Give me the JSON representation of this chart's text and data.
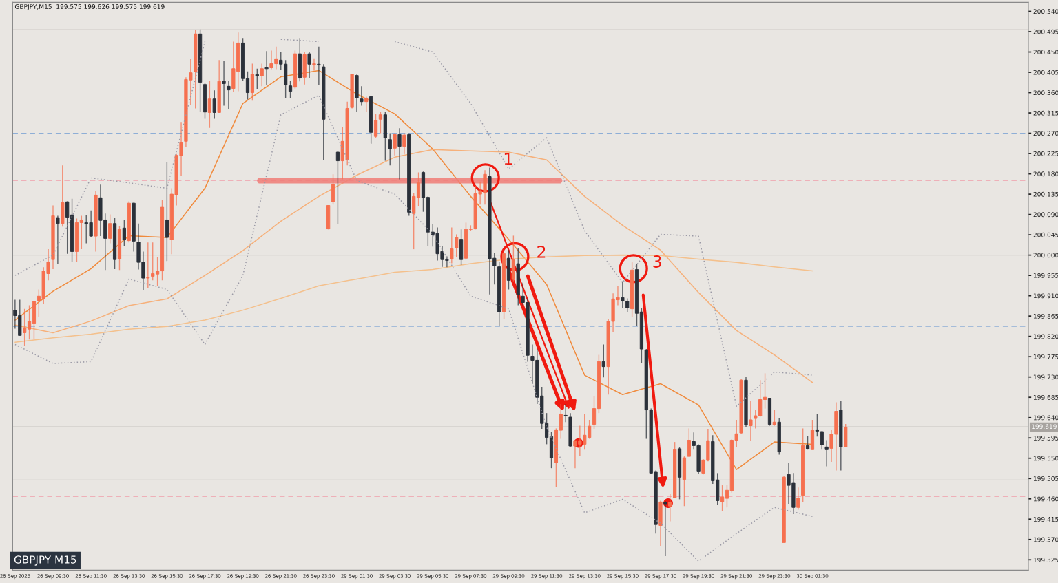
{
  "chart_data": {
    "type": "candlestick",
    "title": "GBPJPY,M15  199.575 199.626 199.575 199.619",
    "annotations": [
      "GBPJPY M15",
      "1",
      "2",
      "3"
    ],
    "categories": [
      "26 Sep 2025",
      null,
      null,
      null,
      null,
      null,
      null,
      null,
      "26 Sep 09:30",
      null,
      null,
      null,
      null,
      null,
      null,
      null,
      "26 Sep 11:30",
      null,
      null,
      null,
      null,
      null,
      null,
      null,
      "26 Sep 13:30",
      null,
      null,
      null,
      null,
      null,
      null,
      null,
      "26 Sep 15:30",
      null,
      null,
      null,
      null,
      null,
      null,
      null,
      "26 Sep 17:30",
      null,
      null,
      null,
      null,
      null,
      null,
      null,
      "26 Sep 19:30",
      null,
      null,
      null,
      null,
      null,
      null,
      null,
      "26 Sep 21:30",
      null,
      null,
      null,
      null,
      null,
      null,
      null,
      "26 Sep 23:30",
      null,
      null,
      null,
      null,
      null,
      null,
      null,
      "29 Sep 01:30",
      null,
      null,
      null,
      null,
      null,
      null,
      null,
      "29 Sep 03:30",
      null,
      null,
      null,
      null,
      null,
      null,
      null,
      "29 Sep 05:30",
      null,
      null,
      null,
      null,
      null,
      null,
      null,
      "29 Sep 07:30",
      null,
      null,
      null,
      null,
      null,
      null,
      null,
      "29 Sep 09:30",
      null,
      null,
      null,
      null,
      null,
      null,
      null,
      "29 Sep 11:30",
      null,
      null,
      null,
      null,
      null,
      null,
      null,
      "29 Sep 13:30",
      null,
      null,
      null,
      null,
      null,
      null,
      null,
      "29 Sep 15:30",
      null,
      null,
      null,
      null,
      null,
      null,
      null,
      "29 Sep 17:30",
      null,
      null,
      null,
      null,
      null,
      null,
      null,
      "29 Sep 19:30",
      null,
      null,
      null,
      null,
      null,
      null,
      null,
      "29 Sep 21:30",
      null,
      null,
      null,
      null,
      null,
      null,
      null,
      "29 Sep 23:30",
      null,
      null,
      null,
      null,
      null,
      null,
      null,
      "30 Sep 01:30",
      null,
      null,
      null,
      null,
      null,
      null,
      null,
      null,
      null,
      null,
      null,
      null,
      null,
      null,
      null,
      null,
      null,
      null,
      null,
      null,
      null,
      null,
      null,
      null,
      null,
      null,
      null,
      null,
      null,
      null,
      null,
      null,
      null,
      null,
      null,
      null,
      null,
      null,
      null,
      null,
      null,
      null,
      null,
      null,
      null
    ],
    "ohlc": [
      [
        199.878,
        199.901,
        199.837,
        199.866
      ],
      [
        199.866,
        199.901,
        199.822,
        199.822
      ],
      [
        199.828,
        199.881,
        199.798,
        199.839
      ],
      [
        199.836,
        199.889,
        199.813,
        199.853
      ],
      [
        199.849,
        199.898,
        199.813,
        199.898
      ],
      [
        199.898,
        199.924,
        199.863,
        199.909
      ],
      [
        199.904,
        199.973,
        199.891,
        199.965
      ],
      [
        199.959,
        200.013,
        199.944,
        199.985
      ],
      [
        199.99,
        200.11,
        199.969,
        200.087
      ],
      [
        200.083,
        200.087,
        199.981,
        200.07
      ],
      [
        200.07,
        200.199,
        200.063,
        200.116
      ],
      [
        200.118,
        200.119,
        200.003,
        200.084
      ],
      [
        200.089,
        200.125,
        199.985,
        200.008
      ],
      [
        200.008,
        200.081,
        199.985,
        200.072
      ],
      [
        200.072,
        200.087,
        200.013,
        200.078
      ],
      [
        200.072,
        200.089,
        200.026,
        200.069
      ],
      [
        200.072,
        200.099,
        200.039,
        200.042
      ],
      [
        200.042,
        200.142,
        200.008,
        200.133
      ],
      [
        200.127,
        200.156,
        200.042,
        200.077
      ],
      [
        200.078,
        200.092,
        199.967,
        200.037
      ],
      [
        200.037,
        200.09,
        200.026,
        200.07
      ],
      [
        200.07,
        200.083,
        199.969,
        199.99
      ],
      [
        199.991,
        200.064,
        199.967,
        200.057
      ],
      [
        200.06,
        200.078,
        200.02,
        200.034
      ],
      [
        200.032,
        200.119,
        200.028,
        200.115
      ],
      [
        200.115,
        200.116,
        200.008,
        200.031
      ],
      [
        200.029,
        200.07,
        199.968,
        199.984
      ],
      [
        199.984,
        200.008,
        199.923,
        199.949
      ],
      [
        199.949,
        200.028,
        199.927,
        199.95
      ],
      [
        199.953,
        200.028,
        199.944,
        199.959
      ],
      [
        199.958,
        199.996,
        199.932,
        199.965
      ],
      [
        199.965,
        200.122,
        199.944,
        200.106
      ],
      [
        200.078,
        200.206,
        199.987,
        200.039
      ],
      [
        200.034,
        200.148,
        200.002,
        200.135
      ],
      [
        200.133,
        200.224,
        200.11,
        200.221
      ],
      [
        200.22,
        200.295,
        200.176,
        200.249
      ],
      [
        200.252,
        200.394,
        200.24,
        200.389
      ],
      [
        200.388,
        200.435,
        200.333,
        200.404
      ],
      [
        200.406,
        200.499,
        200.325,
        200.49
      ],
      [
        200.49,
        200.5,
        200.317,
        200.383
      ],
      [
        200.378,
        200.381,
        200.302,
        200.317
      ],
      [
        200.316,
        200.386,
        200.282,
        200.346
      ],
      [
        200.346,
        200.365,
        200.302,
        200.316
      ],
      [
        200.316,
        200.432,
        200.316,
        200.385
      ],
      [
        200.386,
        200.43,
        200.331,
        200.38
      ],
      [
        200.374,
        200.386,
        200.324,
        200.366
      ],
      [
        200.369,
        200.473,
        200.362,
        200.413
      ],
      [
        200.407,
        200.493,
        200.363,
        200.47
      ],
      [
        200.47,
        200.481,
        200.386,
        200.391
      ],
      [
        200.391,
        200.407,
        200.345,
        200.36
      ],
      [
        200.36,
        200.424,
        200.342,
        200.401
      ],
      [
        200.4,
        200.413,
        200.368,
        200.397
      ],
      [
        200.397,
        200.424,
        200.374,
        200.413
      ],
      [
        200.415,
        200.452,
        200.377,
        200.413
      ],
      [
        200.415,
        200.453,
        200.412,
        200.424
      ],
      [
        200.424,
        200.462,
        200.412,
        200.435
      ],
      [
        200.432,
        200.45,
        200.41,
        200.423
      ],
      [
        200.423,
        200.432,
        200.348,
        200.377
      ],
      [
        200.375,
        200.386,
        200.348,
        200.363
      ],
      [
        200.372,
        200.453,
        200.369,
        200.446
      ],
      [
        200.446,
        200.481,
        200.385,
        200.392
      ],
      [
        200.394,
        200.45,
        200.378,
        200.444
      ],
      [
        200.446,
        200.45,
        200.392,
        200.423
      ],
      [
        200.421,
        200.436,
        200.409,
        200.424
      ],
      [
        200.423,
        200.462,
        200.377,
        200.421
      ],
      [
        200.417,
        200.423,
        200.211,
        200.301
      ],
      [
        200.058,
        200.11,
        200.057,
        200.11
      ],
      [
        200.118,
        200.179,
        200.112,
        200.157
      ],
      [
        200.228,
        200.231,
        200.069,
        200.209
      ],
      [
        200.209,
        200.284,
        200.168,
        200.252
      ],
      [
        200.211,
        200.34,
        200.199,
        200.325
      ],
      [
        200.327,
        200.401,
        200.325,
        200.401
      ],
      [
        200.398,
        200.4,
        200.317,
        200.348
      ],
      [
        200.346,
        200.374,
        200.331,
        200.34
      ],
      [
        200.34,
        200.351,
        200.317,
        200.348
      ],
      [
        200.351,
        200.353,
        200.247,
        200.272
      ],
      [
        200.263,
        200.313,
        200.26,
        200.299
      ],
      [
        200.301,
        200.317,
        200.27,
        200.311
      ],
      [
        200.311,
        200.317,
        200.209,
        200.26
      ],
      [
        200.256,
        200.27,
        200.199,
        200.235
      ],
      [
        200.237,
        200.27,
        200.221,
        200.267
      ],
      [
        200.267,
        200.281,
        200.168,
        200.241
      ],
      [
        200.241,
        200.27,
        200.224,
        200.266
      ],
      [
        200.267,
        200.27,
        200.087,
        200.095
      ],
      [
        200.092,
        200.138,
        200.013,
        200.13
      ],
      [
        200.127,
        200.183,
        200.109,
        200.16
      ],
      [
        200.183,
        200.185,
        200.096,
        200.127
      ],
      [
        200.128,
        200.13,
        200.02,
        200.051
      ],
      [
        200.051,
        200.069,
        200.019,
        200.046
      ],
      [
        200.048,
        200.061,
        199.988,
        200.003
      ],
      [
        200.008,
        200.02,
        199.974,
        199.99
      ],
      [
        199.99,
        199.997,
        199.973,
        199.988
      ],
      [
        199.991,
        200.061,
        199.982,
        200.014
      ],
      [
        200.016,
        200.046,
        199.996,
        200.039
      ],
      [
        200.035,
        200.057,
        199.978,
        199.99
      ],
      [
        199.993,
        200.072,
        199.99,
        200.057
      ],
      [
        200.057,
        200.066,
        200.054,
        200.058
      ],
      [
        200.058,
        200.153,
        200.057,
        200.136
      ],
      [
        200.135,
        200.163,
        200.112,
        200.142
      ],
      [
        200.138,
        200.188,
        200.112,
        200.179
      ],
      [
        200.174,
        200.194,
        199.913,
        199.991
      ],
      [
        199.993,
        200.005,
        199.935,
        199.976
      ],
      [
        199.974,
        199.985,
        199.843,
        199.874
      ],
      [
        199.874,
        200.005,
        199.859,
        200.003
      ],
      [
        199.993,
        200.011,
        199.924,
        199.944
      ],
      [
        199.946,
        200.043,
        199.942,
        199.99
      ],
      [
        199.981,
        200.016,
        199.889,
        199.912
      ],
      [
        199.909,
        199.939,
        199.889,
        199.895
      ],
      [
        199.895,
        199.904,
        199.764,
        199.778
      ],
      [
        199.776,
        199.802,
        199.715,
        199.767
      ],
      [
        199.767,
        199.792,
        199.67,
        199.685
      ],
      [
        199.688,
        199.708,
        199.615,
        199.627
      ],
      [
        199.627,
        199.65,
        199.581,
        199.596
      ],
      [
        199.598,
        199.609,
        199.528,
        199.551
      ],
      [
        199.54,
        199.616,
        199.487,
        199.613
      ],
      [
        199.612,
        199.67,
        199.593,
        199.648
      ],
      [
        199.645,
        199.67,
        199.63,
        199.644
      ],
      [
        199.641,
        199.65,
        199.575,
        199.577
      ],
      [
        199.577,
        199.589,
        199.528,
        199.589
      ],
      [
        199.581,
        199.622,
        199.555,
        199.589
      ],
      [
        199.581,
        199.647,
        199.569,
        199.601
      ],
      [
        199.596,
        199.635,
        199.593,
        199.621
      ],
      [
        199.625,
        199.688,
        199.615,
        199.66
      ],
      [
        199.66,
        199.779,
        199.65,
        199.764
      ],
      [
        199.764,
        199.802,
        199.729,
        199.753
      ],
      [
        199.753,
        199.859,
        199.691,
        199.853
      ],
      [
        199.853,
        199.915,
        199.83,
        199.903
      ],
      [
        199.901,
        199.932,
        199.889,
        199.906
      ],
      [
        199.906,
        199.942,
        199.883,
        199.898
      ],
      [
        199.898,
        199.904,
        199.874,
        199.883
      ],
      [
        199.881,
        199.984,
        199.863,
        199.967
      ],
      [
        199.968,
        199.981,
        199.843,
        199.871
      ],
      [
        199.874,
        199.883,
        199.761,
        199.792
      ],
      [
        199.79,
        199.792,
        199.593,
        199.657
      ],
      [
        199.657,
        199.66,
        199.517,
        199.517
      ],
      [
        199.519,
        199.523,
        199.383,
        199.403
      ],
      [
        199.401,
        199.456,
        199.356,
        199.453
      ],
      [
        199.452,
        199.455,
        199.333,
        199.449
      ],
      [
        199.444,
        199.471,
        199.41,
        199.452
      ],
      [
        199.462,
        199.586,
        199.462,
        199.569
      ],
      [
        199.571,
        199.574,
        199.459,
        199.508
      ],
      [
        199.503,
        199.554,
        199.444,
        199.551
      ],
      [
        199.554,
        199.616,
        199.554,
        199.59
      ],
      [
        199.587,
        199.607,
        199.569,
        199.578
      ],
      [
        199.578,
        199.581,
        199.516,
        199.52
      ],
      [
        199.517,
        199.548,
        199.514,
        199.546
      ],
      [
        199.545,
        199.615,
        199.543,
        199.589
      ],
      [
        199.587,
        199.601,
        199.493,
        199.5
      ],
      [
        199.502,
        199.517,
        199.447,
        199.456
      ],
      [
        199.453,
        199.49,
        199.433,
        199.464
      ],
      [
        199.461,
        199.49,
        199.441,
        199.479
      ],
      [
        199.478,
        199.592,
        199.474,
        199.59
      ],
      [
        199.59,
        199.635,
        199.574,
        199.604
      ],
      [
        199.606,
        199.726,
        199.604,
        199.723
      ],
      [
        199.723,
        199.731,
        199.619,
        199.624
      ],
      [
        199.622,
        199.677,
        199.589,
        199.635
      ],
      [
        199.638,
        199.657,
        199.616,
        199.644
      ],
      [
        199.644,
        199.723,
        199.642,
        199.68
      ],
      [
        199.68,
        199.738,
        199.66,
        199.685
      ],
      [
        199.683,
        199.683,
        199.622,
        199.625
      ],
      [
        199.624,
        199.657,
        199.622,
        199.63
      ],
      [
        199.63,
        199.638,
        199.558,
        199.564
      ],
      [
        199.363,
        199.51,
        199.363,
        199.508
      ],
      [
        199.514,
        199.54,
        199.449,
        199.49
      ],
      [
        199.496,
        199.517,
        199.426,
        199.441
      ],
      [
        199.441,
        199.485,
        199.436,
        199.462
      ],
      [
        199.468,
        199.616,
        199.453,
        199.578
      ],
      [
        199.578,
        199.599,
        199.569,
        199.571
      ],
      [
        199.569,
        199.635,
        199.569,
        199.612
      ],
      [
        199.613,
        199.648,
        199.598,
        199.61
      ],
      [
        199.609,
        199.61,
        199.569,
        199.58
      ],
      [
        199.575,
        199.59,
        199.532,
        199.569
      ],
      [
        199.572,
        199.613,
        199.542,
        199.603
      ],
      [
        199.603,
        199.674,
        199.523,
        199.654
      ],
      [
        199.657,
        199.676,
        199.523,
        199.575
      ],
      [
        199.575,
        199.626,
        199.575,
        199.619
      ],
      null,
      null,
      null,
      null,
      null,
      null,
      null,
      null,
      null,
      null,
      null,
      null,
      null,
      null,
      null,
      null,
      null,
      null,
      null,
      null,
      null,
      null,
      null,
      null,
      null,
      null,
      null,
      null,
      null,
      null,
      null,
      null,
      null,
      null,
      null,
      null,
      null,
      null
    ],
    "colors": [
      "#2b313a",
      "#2b313a",
      "#f6704f",
      "#f6704f",
      "#f6704f",
      "#f6704f",
      "#f6704f",
      "#f6704f",
      "#f6704f",
      "#2b313a",
      "#f6704f",
      "#2b313a",
      "#2b313a",
      "#f6704f",
      "#f6704f",
      "#2b313a",
      "#2b313a",
      "#f6704f",
      "#2b313a",
      "#2b313a",
      "#f6704f",
      "#2b313a",
      "#f6704f",
      "#2b313a",
      "#f6704f",
      "#2b313a",
      "#2b313a",
      "#2b313a",
      "#f6704f",
      "#f6704f",
      "#f6704f",
      "#f6704f",
      "#2b313a",
      "#f6704f",
      "#f6704f",
      "#f6704f",
      "#f6704f",
      "#f6704f",
      "#f6704f",
      "#2b313a",
      "#2b313a",
      "#f6704f",
      "#2b313a",
      "#f6704f",
      "#2b313a",
      "#2b313a",
      "#f6704f",
      "#f6704f",
      "#2b313a",
      "#2b313a",
      "#f6704f",
      "#2b313a",
      "#f6704f",
      "#2b313a",
      "#f6704f",
      "#f6704f",
      "#2b313a",
      "#2b313a",
      "#2b313a",
      "#f6704f",
      "#2b313a",
      "#f6704f",
      "#2b313a",
      "#f6704f",
      "#2b313a",
      "#2b313a",
      "#f6704f",
      "#f6704f",
      "#2b313a",
      "#f6704f",
      "#f6704f",
      "#f6704f",
      "#2b313a",
      "#2b313a",
      "#f6704f",
      "#2b313a",
      "#f6704f",
      "#f6704f",
      "#2b313a",
      "#2b313a",
      "#f6704f",
      "#2b313a",
      "#f6704f",
      "#2b313a",
      "#f6704f",
      "#f6704f",
      "#2b313a",
      "#2b313a",
      "#2b313a",
      "#2b313a",
      "#2b313a",
      "#2b313a",
      "#f6704f",
      "#f6704f",
      "#2b313a",
      "#f6704f",
      "#f6704f",
      "#f6704f",
      "#f6704f",
      "#f6704f",
      "#2b313a",
      "#2b313a",
      "#2b313a",
      "#f6704f",
      "#2b313a",
      "#f6704f",
      "#2b313a",
      "#2b313a",
      "#2b313a",
      "#2b313a",
      "#2b313a",
      "#2b313a",
      "#2b313a",
      "#2b313a",
      "#f6704f",
      "#f6704f",
      "#2b313a",
      "#2b313a",
      "#f6704f",
      "#f6704f",
      "#f6704f",
      "#f6704f",
      "#f6704f",
      "#f6704f",
      "#2b313a",
      "#f6704f",
      "#f6704f",
      "#f6704f",
      "#2b313a",
      "#2b313a",
      "#f6704f",
      "#2b313a",
      "#2b313a",
      "#2b313a",
      "#2b313a",
      "#2b313a",
      "#f6704f",
      "#2b313a",
      "#f6704f",
      "#f6704f",
      "#2b313a",
      "#f6704f",
      "#f6704f",
      "#2b313a",
      "#2b313a",
      "#f6704f",
      "#f6704f",
      "#2b313a",
      "#2b313a",
      "#f6704f",
      "#f6704f",
      "#f6704f",
      "#f6704f",
      "#f6704f",
      "#2b313a",
      "#f6704f",
      "#f6704f",
      "#f6704f",
      "#f6704f",
      "#2b313a",
      "#f6704f",
      "#2b313a",
      "#f6704f",
      "#2b313a",
      "#2b313a",
      "#f6704f",
      "#f6704f",
      "#2b313a",
      "#f6704f",
      "#2b313a",
      "#2b313a",
      "#2b313a",
      "#f6704f",
      "#f6704f",
      "#2b313a",
      "#f6704f",
      null,
      null,
      null,
      null,
      null,
      null,
      null,
      null,
      null,
      null,
      null,
      null,
      null,
      null,
      null,
      null,
      null,
      null,
      null,
      null,
      null,
      null,
      null,
      null,
      null,
      null,
      null,
      null,
      null,
      null,
      null,
      null,
      null,
      null,
      null,
      null,
      null,
      null
    ],
    "series": [
      {
        "type": "line",
        "color": "#f08a3c",
        "line_style": "solid",
        "x": [
          "26 Sep 2025",
          "26 Sep 09:30",
          "26 Sep 11:30",
          "26 Sep 13:30",
          "26 Sep 15:30",
          "26 Sep 17:30",
          "26 Sep 19:30",
          "26 Sep 21:30",
          "26 Sep 23:30",
          "29 Sep 01:30",
          "29 Sep 03:30",
          "29 Sep 05:30",
          "29 Sep 07:30",
          "29 Sep 09:30",
          "29 Sep 11:30",
          "29 Sep 13:30",
          "29 Sep 15:30",
          "29 Sep 17:30",
          "29 Sep 19:30",
          "29 Sep 21:30",
          "29 Sep 23:30",
          "30 Sep 01:30"
        ],
        "values": [
          199.856,
          199.92,
          199.97,
          200.043,
          200.039,
          200.148,
          200.336,
          200.395,
          200.409,
          200.357,
          200.313,
          200.235,
          200.13,
          200.035,
          199.935,
          199.734,
          199.691,
          199.715,
          199.668,
          199.525,
          199.586,
          199.581
        ]
      },
      {
        "type": "line",
        "color": "#f6b07a",
        "line_style": "solid",
        "x": [
          "26 Sep 2025",
          "26 Sep 09:30",
          "26 Sep 11:30",
          "26 Sep 13:30",
          "26 Sep 15:30",
          "26 Sep 17:30",
          "26 Sep 19:30",
          "26 Sep 21:30",
          "26 Sep 23:30",
          "29 Sep 01:30",
          "29 Sep 03:30",
          "29 Sep 05:30",
          "29 Sep 07:30",
          "29 Sep 09:30",
          "29 Sep 11:30",
          "29 Sep 13:30",
          "29 Sep 15:30",
          "29 Sep 17:30",
          "29 Sep 19:30",
          "29 Sep 21:30",
          "29 Sep 23:30",
          "30 Sep 01:30"
        ],
        "values": [
          199.845,
          199.828,
          199.854,
          199.888,
          199.903,
          199.955,
          200.01,
          200.075,
          200.13,
          200.177,
          200.217,
          200.234,
          200.231,
          200.228,
          200.211,
          200.13,
          200.066,
          200.011,
          199.917,
          199.833,
          199.779,
          199.718
        ]
      },
      {
        "type": "line",
        "color": "#f4c08c",
        "line_style": "solid",
        "x": [
          "26 Sep 2025",
          "26 Sep 09:30",
          "26 Sep 11:30",
          "26 Sep 13:30",
          "26 Sep 15:30",
          "26 Sep 17:30",
          "26 Sep 19:30",
          "26 Sep 21:30",
          "26 Sep 23:30",
          "29 Sep 01:30",
          "29 Sep 03:30",
          "29 Sep 05:30",
          "29 Sep 07:30",
          "29 Sep 09:30",
          "29 Sep 11:30",
          "29 Sep 13:30",
          "29 Sep 15:30",
          "29 Sep 17:30",
          "29 Sep 19:30",
          "29 Sep 21:30",
          "29 Sep 23:30",
          "30 Sep 01:30"
        ],
        "values": [
          199.807,
          199.817,
          199.825,
          199.836,
          199.842,
          199.856,
          199.878,
          199.904,
          199.932,
          199.947,
          199.962,
          199.968,
          199.981,
          199.991,
          199.996,
          199.999,
          200.0,
          199.999,
          199.991,
          199.984,
          199.974,
          199.965
        ]
      },
      {
        "type": "line",
        "color": "#9b9aa6",
        "line_style": "dotted",
        "x": [
          "26 Sep 2025",
          "26 Sep 09:30",
          "26 Sep 11:30",
          "26 Sep 13:30",
          "26 Sep 15:30",
          "26 Sep 17:30",
          "26 Sep 19:30",
          "26 Sep 21:30",
          "26 Sep 23:30",
          "29 Sep 01:30",
          "29 Sep 03:30",
          "29 Sep 05:30",
          "29 Sep 07:30",
          "29 Sep 09:30",
          "29 Sep 11:30",
          "29 Sep 13:30",
          "29 Sep 15:30",
          "29 Sep 17:30",
          "29 Sep 19:30",
          "29 Sep 21:30",
          "29 Sep 23:30",
          "30 Sep 01:30"
        ],
        "values": [
          199.955,
          200.0,
          200.171,
          200.16,
          200.148,
          200.473,
          null,
          200.478,
          200.473,
          null,
          200.473,
          200.45,
          200.336,
          200.191,
          200.26,
          200.054,
          199.939,
          200.046,
          200.042,
          199.665,
          199.741,
          199.734
        ]
      },
      {
        "type": "line",
        "color": "#9b9aa6",
        "line_style": "dotted",
        "x": [
          "26 Sep 2025",
          "26 Sep 09:30",
          "26 Sep 11:30",
          "26 Sep 13:30",
          "26 Sep 15:30",
          "26 Sep 17:30",
          "26 Sep 19:30",
          "26 Sep 21:30",
          "26 Sep 23:30",
          "29 Sep 01:30",
          "29 Sep 03:30",
          "29 Sep 05:30",
          "29 Sep 07:30",
          "29 Sep 09:30",
          "29 Sep 11:30",
          "29 Sep 13:30",
          "29 Sep 15:30",
          "29 Sep 17:30",
          "29 Sep 19:30",
          "29 Sep 21:30",
          "29 Sep 23:30",
          "30 Sep 01:30"
        ],
        "values": [
          199.802,
          199.76,
          199.764,
          199.947,
          199.924,
          199.802,
          199.955,
          200.311,
          200.354,
          200.165,
          200.135,
          200.046,
          199.909,
          199.881,
          199.619,
          199.429,
          199.459,
          199.406,
          199.322,
          199.383,
          199.441,
          199.421
        ]
      }
    ],
    "ref_lines": [
      {
        "axis": "y",
        "value": 200.5,
        "color": "#dcd8d4",
        "line_style": "solid"
      },
      {
        "axis": "y",
        "value": 200.27,
        "color": "#8eaed6",
        "line_style": "dashed"
      },
      {
        "axis": "y",
        "value": 200.165,
        "color": "#eeb0b8",
        "line_style": "dashed"
      },
      {
        "axis": "y",
        "value": 200.0,
        "color": "#cdc9c5",
        "line_style": "solid"
      },
      {
        "axis": "y",
        "value": 199.842,
        "color": "#8eaed6",
        "line_style": "dashed"
      },
      {
        "axis": "y",
        "value": 199.619,
        "color": "#a8a4a0",
        "line_style": "solid",
        "label": "199.619"
      },
      {
        "axis": "y",
        "value": 199.502,
        "color": "#dcd8d4",
        "line_style": "solid"
      },
      {
        "axis": "y",
        "value": 199.465,
        "color": "#eeb0b8",
        "line_style": "dashed"
      }
    ],
    "ylim": [
      199.302,
      200.56
    ],
    "yticks": [
      {
        "value": 200.54,
        "label": "200.540"
      },
      {
        "value": 200.495,
        "label": "200.495"
      },
      {
        "value": 200.45,
        "label": "200.450"
      },
      {
        "value": 200.405,
        "label": "200.405"
      },
      {
        "value": 200.36,
        "label": "200.360"
      },
      {
        "value": 200.315,
        "label": "200.315"
      },
      {
        "value": 200.27,
        "label": "200.270"
      },
      {
        "value": 200.225,
        "label": "200.225"
      },
      {
        "value": 200.18,
        "label": "200.180"
      },
      {
        "value": 200.135,
        "label": "200.135"
      },
      {
        "value": 200.09,
        "label": "200.090"
      },
      {
        "value": 200.045,
        "label": "200.045"
      },
      {
        "value": 200.0,
        "label": "200.000"
      },
      {
        "value": 199.955,
        "label": "199.955"
      },
      {
        "value": 199.91,
        "label": "199.910"
      },
      {
        "value": 199.865,
        "label": "199.865"
      },
      {
        "value": 199.82,
        "label": "199.820"
      },
      {
        "value": 199.775,
        "label": "199.775"
      },
      {
        "value": 199.73,
        "label": "199.730"
      },
      {
        "value": 199.685,
        "label": "199.685"
      },
      {
        "value": 199.64,
        "label": "199.640"
      },
      {
        "value": 199.595,
        "label": "199.595"
      },
      {
        "value": 199.55,
        "label": "199.550"
      },
      {
        "value": 199.505,
        "label": "199.505"
      },
      {
        "value": 199.46,
        "label": "199.460"
      },
      {
        "value": 199.415,
        "label": "199.415"
      },
      {
        "value": 199.37,
        "label": "199.370"
      },
      {
        "value": 199.325,
        "label": "199.325"
      }
    ]
  }
}
